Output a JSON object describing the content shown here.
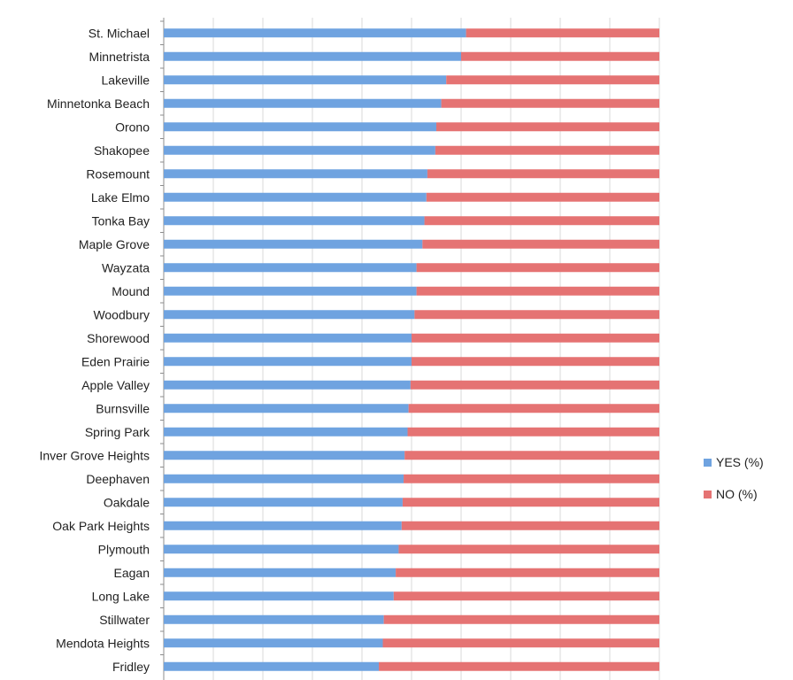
{
  "chart_data": {
    "type": "bar",
    "orientation": "horizontal",
    "stacked": "100%",
    "categories": [
      "St. Michael",
      "Minnetrista",
      "Lakeville",
      "Minnetonka Beach",
      "Orono",
      "Shakopee",
      "Rosemount",
      "Lake Elmo",
      "Tonka Bay",
      "Maple Grove",
      "Wayzata",
      "Mound",
      "Woodbury",
      "Shorewood",
      "Eden Prairie",
      "Apple Valley",
      "Burnsville",
      "Spring Park",
      "Inver Grove Heights",
      "Deephaven",
      "Oakdale",
      "Oak Park Heights",
      "Plymouth",
      "Eagan",
      "Long Lake",
      "Stillwater",
      "Mendota Heights",
      "Fridley"
    ],
    "series": [
      {
        "name": "YES (%)",
        "color": "#6fa3e0",
        "values": [
          61,
          60,
          57,
          56,
          55,
          54.8,
          53.2,
          53,
          52.6,
          52.2,
          51,
          51,
          50.6,
          50,
          50,
          49.8,
          49.4,
          49.2,
          48.6,
          48.4,
          48.2,
          48,
          47.4,
          46.8,
          46.4,
          44.4,
          44.2,
          43.4
        ]
      },
      {
        "name": "NO (%)",
        "color": "#e57373",
        "values": [
          39,
          40,
          43,
          44,
          45,
          45.2,
          46.8,
          47,
          47.4,
          47.8,
          49,
          49,
          49.4,
          50,
          50,
          50.2,
          50.6,
          50.8,
          51.4,
          51.6,
          51.8,
          52,
          52.6,
          53.2,
          53.6,
          55.6,
          55.8,
          56.6
        ]
      }
    ],
    "xlim": [
      0,
      100
    ],
    "grid": true,
    "legend": "right"
  }
}
